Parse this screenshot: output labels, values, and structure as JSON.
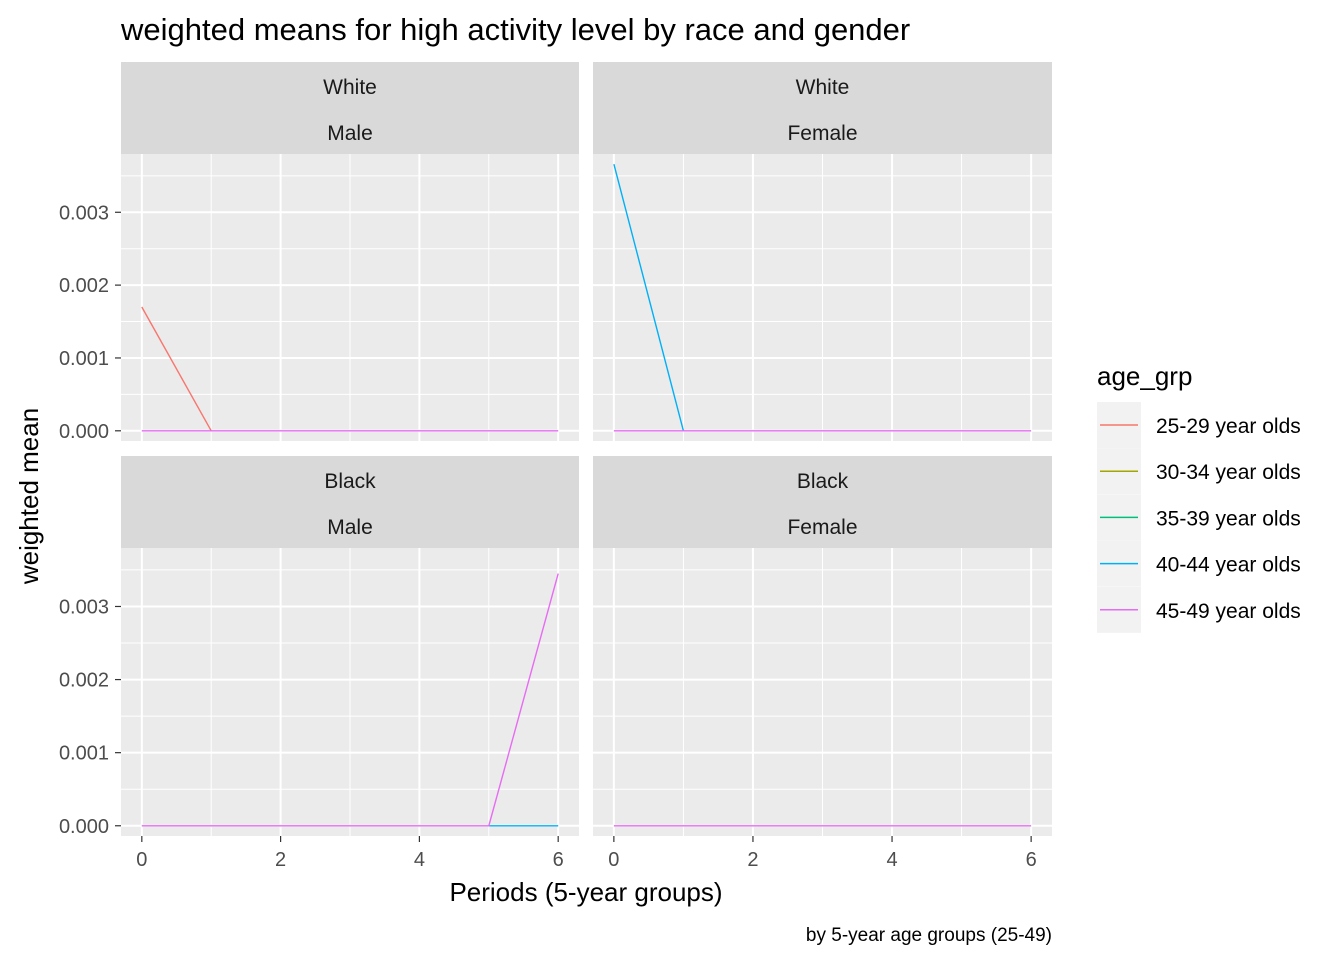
{
  "chart_data": {
    "type": "line",
    "title": "weighted means for high activity level by race and gender",
    "xlabel": "Periods (5-year groups)",
    "ylabel": "weighted mean",
    "caption": "by 5-year age groups (25-49)",
    "xlim": [
      -0.3,
      6.3
    ],
    "ylim": [
      -0.00014,
      0.0038
    ],
    "x_ticks": [
      0,
      2,
      4,
      6
    ],
    "x_tick_labels": [
      "0",
      "2",
      "4",
      "6"
    ],
    "y_ticks": [
      0,
      0.001,
      0.002,
      0.003
    ],
    "y_tick_labels": [
      "0.000",
      "0.001",
      "0.002",
      "0.003"
    ],
    "grid": true,
    "legend": {
      "title": "age_grp",
      "placement": "right",
      "entries": [
        {
          "label": "25-29 year olds",
          "color": "#F8766D"
        },
        {
          "label": "30-34 year olds",
          "color": "#A3A500"
        },
        {
          "label": "35-39 year olds",
          "color": "#00BF7D"
        },
        {
          "label": "40-44 year olds",
          "color": "#00B0F6"
        },
        {
          "label": "45-49 year olds",
          "color": "#E76BF3"
        }
      ]
    },
    "panels": [
      {
        "race": "White",
        "gender": "Male",
        "series": [
          {
            "name": "25-29 year olds",
            "x": [
              0,
              1
            ],
            "y": [
              0.0017,
              0
            ]
          },
          {
            "name": "45-49 year olds",
            "x": [
              0,
              1,
              2,
              3,
              4,
              5,
              6
            ],
            "y": [
              0,
              0,
              0,
              0,
              0,
              0,
              0
            ]
          }
        ]
      },
      {
        "race": "White",
        "gender": "Female",
        "series": [
          {
            "name": "40-44 year olds",
            "x": [
              0,
              1
            ],
            "y": [
              0.00366,
              0
            ]
          },
          {
            "name": "45-49 year olds",
            "x": [
              0,
              1,
              2,
              3,
              4,
              5,
              6
            ],
            "y": [
              0,
              0,
              0,
              0,
              0,
              0,
              0
            ]
          }
        ]
      },
      {
        "race": "Black",
        "gender": "Male",
        "series": [
          {
            "name": "40-44 year olds",
            "x": [
              5,
              6
            ],
            "y": [
              0,
              0
            ]
          },
          {
            "name": "45-49 year olds",
            "x": [
              0,
              1,
              2,
              3,
              4,
              5,
              6
            ],
            "y": [
              0,
              0,
              0,
              0,
              0,
              0,
              0.00345
            ]
          }
        ]
      },
      {
        "race": "Black",
        "gender": "Female",
        "series": [
          {
            "name": "45-49 year olds",
            "x": [
              0,
              1,
              2,
              3,
              4,
              5,
              6
            ],
            "y": [
              0,
              0,
              0,
              0,
              0,
              0,
              0
            ]
          }
        ]
      }
    ]
  }
}
